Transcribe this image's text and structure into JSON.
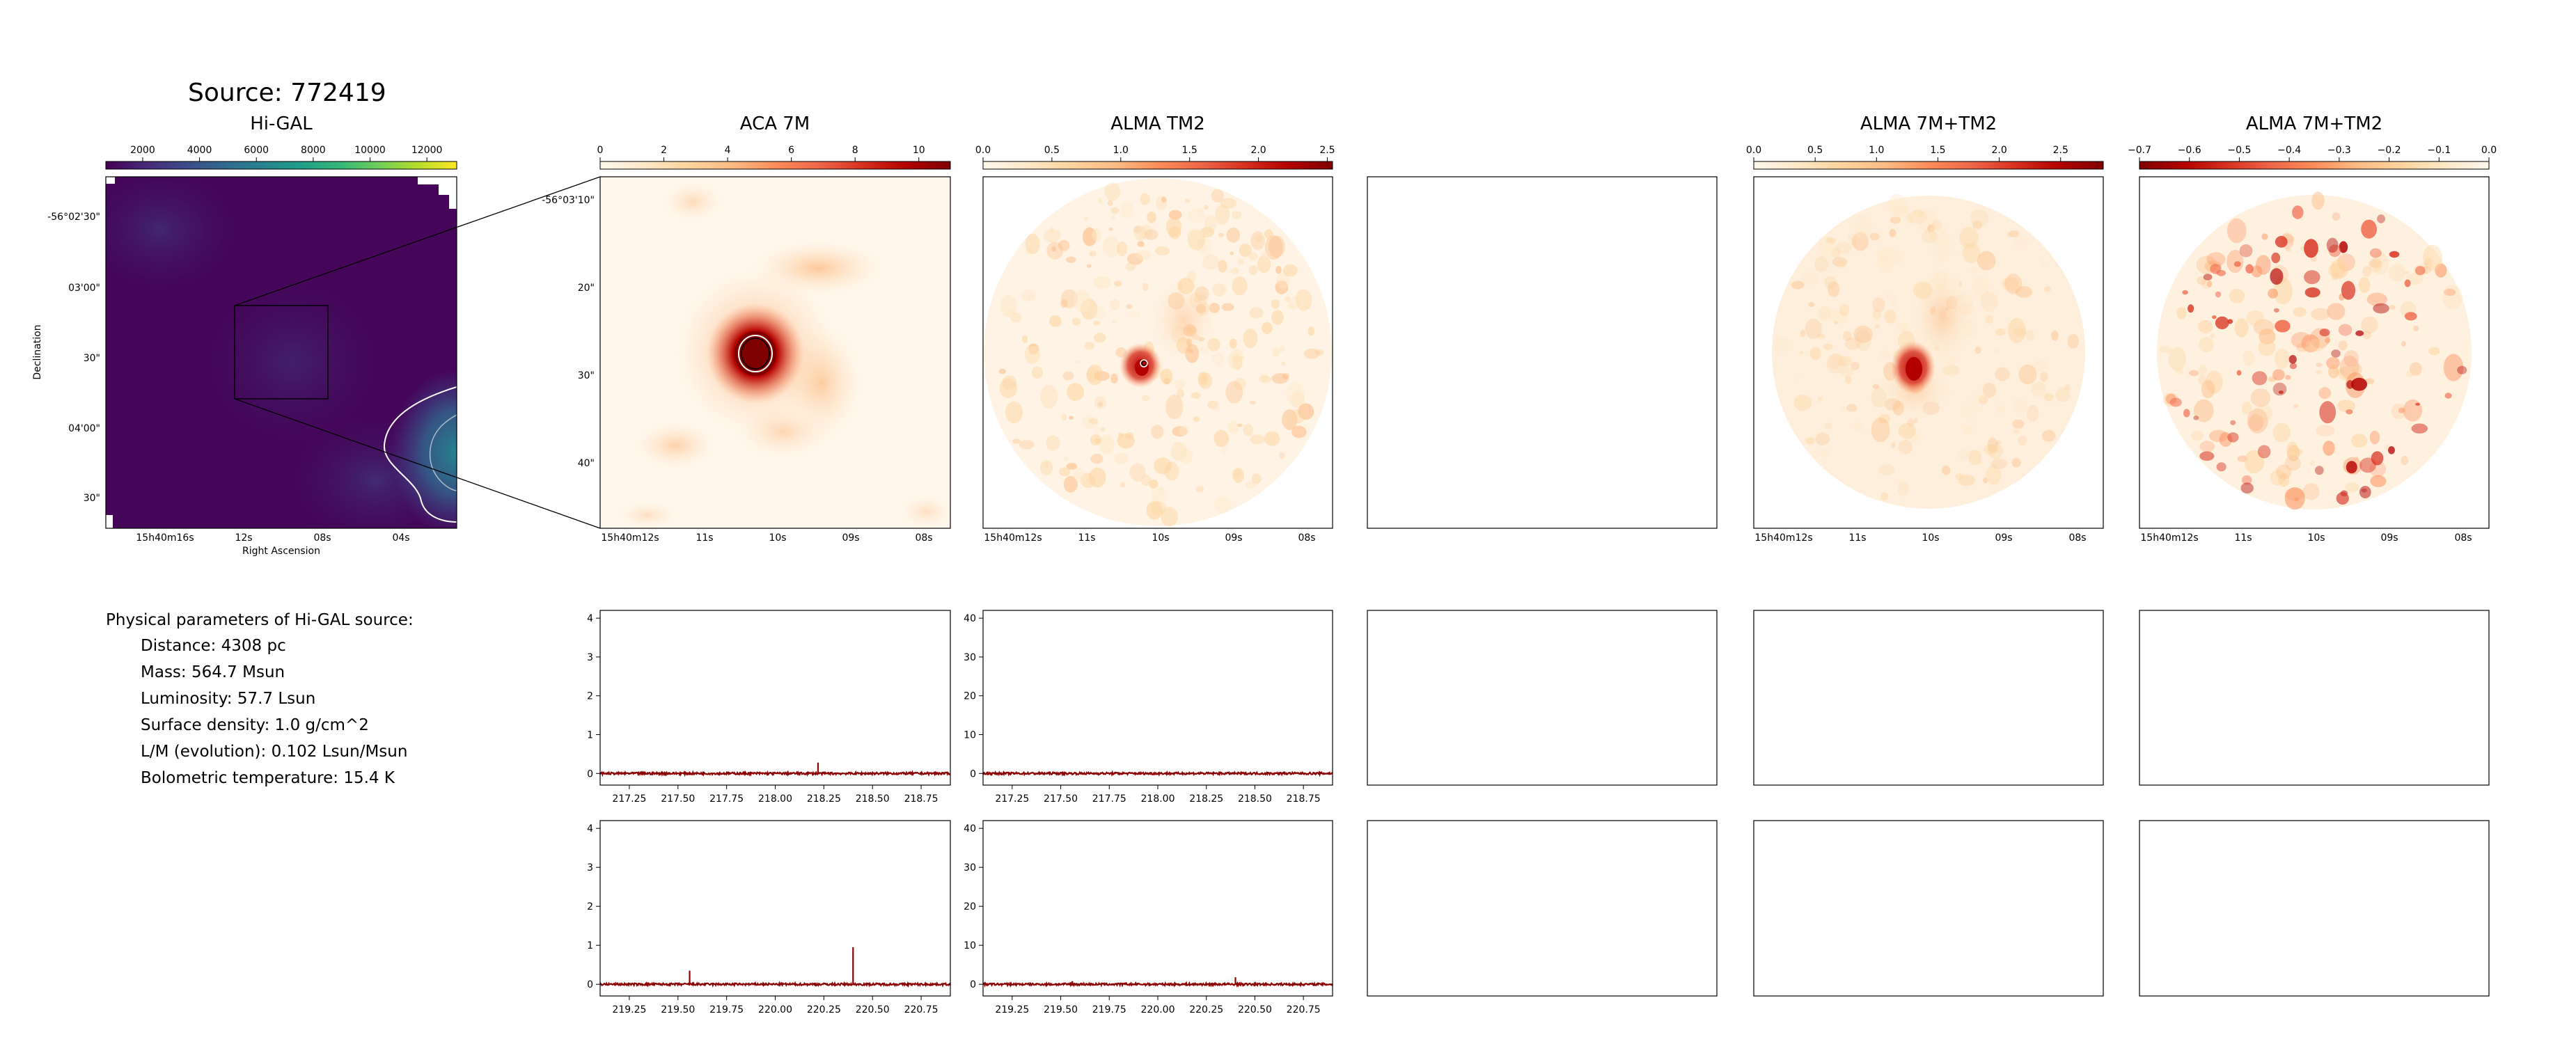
{
  "source_title": "Source: 772419",
  "params": {
    "heading": "Physical parameters of Hi-GAL source:",
    "lines": [
      "Distance: 4308 pc",
      "Mass: 564.7 Msun",
      "Luminosity: 57.7 Lsun",
      "Surface density: 1.0 g/cm^2",
      "L/M (evolution): 0.102 Lsun/Msun",
      "Bolometric temperature: 15.4 K"
    ]
  },
  "colors": {
    "viridis": [
      "#440154",
      "#482878",
      "#3e4989",
      "#31688e",
      "#26828e",
      "#1f9e89",
      "#35b779",
      "#6ece58",
      "#b5de2b",
      "#fde725"
    ],
    "orrd": [
      "#fff7ec",
      "#fee8c8",
      "#fdd49e",
      "#fdbb84",
      "#fc8d59",
      "#ef6548",
      "#d7301f",
      "#b30000",
      "#7f0000"
    ],
    "orrd_r": [
      "#7f0000",
      "#b30000",
      "#d7301f",
      "#ef6548",
      "#fc8d59",
      "#fdbb84",
      "#fdd49e",
      "#fee8c8",
      "#fff7ec"
    ],
    "spectrum_line": "#8b0000"
  },
  "chart_data": [
    {
      "type": "heatmap",
      "title": "Hi-GAL",
      "colorbar_ticks": [
        "2000",
        "4000",
        "6000",
        "8000",
        "10000",
        "12000"
      ],
      "x_ticks": [
        "15h40m16s",
        "12s",
        "08s",
        "04s"
      ],
      "y_ticks": [
        "-56°02'30\"",
        "03'00\"",
        "30\"",
        "04'00\"",
        "30\""
      ],
      "xlabel": "Right Ascension",
      "ylabel": "Declination"
    },
    {
      "type": "heatmap",
      "title": "ACA 7M",
      "colorbar_ticks": [
        "0",
        "2",
        "4",
        "6",
        "8",
        "10"
      ],
      "x_ticks": [
        "15h40m12s",
        "11s",
        "10s",
        "09s",
        "08s"
      ],
      "y_ticks": [
        "-56°03'10\"",
        "20\"",
        "30\"",
        "40\""
      ]
    },
    {
      "type": "heatmap",
      "title": "ALMA TM2",
      "colorbar_ticks": [
        "0.0",
        "0.5",
        "1.0",
        "1.5",
        "2.0",
        "2.5"
      ],
      "x_ticks": [
        "15h40m12s",
        "11s",
        "10s",
        "09s",
        "08s"
      ]
    },
    {
      "type": "heatmap",
      "title": "ALMA 7M+TM2",
      "colorbar_ticks": [
        "0.0",
        "0.5",
        "1.0",
        "1.5",
        "2.0",
        "2.5"
      ],
      "x_ticks": [
        "15h40m12s",
        "11s",
        "10s",
        "09s",
        "08s"
      ]
    },
    {
      "type": "heatmap",
      "title": "ALMA 7M+TM2",
      "colorbar_ticks": [
        "−0.7",
        "−0.6",
        "−0.5",
        "−0.4",
        "−0.3",
        "−0.2",
        "−0.1",
        "0.0"
      ],
      "x_ticks": [
        "15h40m12s",
        "11s",
        "10s",
        "09s",
        "08s"
      ]
    },
    {
      "type": "line",
      "title": "",
      "xlim": [
        217.1,
        218.9
      ],
      "ylim": [
        -0.3,
        4.2
      ],
      "x_ticks": [
        "217.25",
        "217.50",
        "217.75",
        "218.00",
        "218.25",
        "218.50",
        "218.75"
      ],
      "y_ticks": [
        "0",
        "1",
        "2",
        "3",
        "4"
      ],
      "peaks": [
        {
          "x": 218.22,
          "y": 0.28
        }
      ]
    },
    {
      "type": "line",
      "title": "",
      "xlim": [
        217.1,
        218.9
      ],
      "ylim": [
        -3,
        42
      ],
      "x_ticks": [
        "217.25",
        "217.50",
        "217.75",
        "218.00",
        "218.25",
        "218.50",
        "218.75"
      ],
      "y_ticks": [
        "0",
        "10",
        "20",
        "30",
        "40"
      ],
      "peaks": [
        {
          "x": 218.22,
          "y": 0.5
        }
      ]
    },
    {
      "type": "line",
      "title": "",
      "xlim": [
        219.1,
        220.9
      ],
      "ylim": [
        -0.3,
        4.2
      ],
      "x_ticks": [
        "219.25",
        "219.50",
        "219.75",
        "220.00",
        "220.25",
        "220.50",
        "220.75"
      ],
      "y_ticks": [
        "0",
        "1",
        "2",
        "3",
        "4"
      ],
      "peaks": [
        {
          "x": 219.56,
          "y": 0.35
        },
        {
          "x": 220.4,
          "y": 0.95
        }
      ]
    },
    {
      "type": "line",
      "title": "",
      "xlim": [
        219.1,
        220.9
      ],
      "ylim": [
        -3,
        42
      ],
      "x_ticks": [
        "219.25",
        "219.50",
        "219.75",
        "220.00",
        "220.25",
        "220.50",
        "220.75"
      ],
      "y_ticks": [
        "0",
        "10",
        "20",
        "30",
        "40"
      ],
      "peaks": [
        {
          "x": 219.56,
          "y": 0.8
        },
        {
          "x": 220.4,
          "y": 1.8
        }
      ]
    }
  ]
}
